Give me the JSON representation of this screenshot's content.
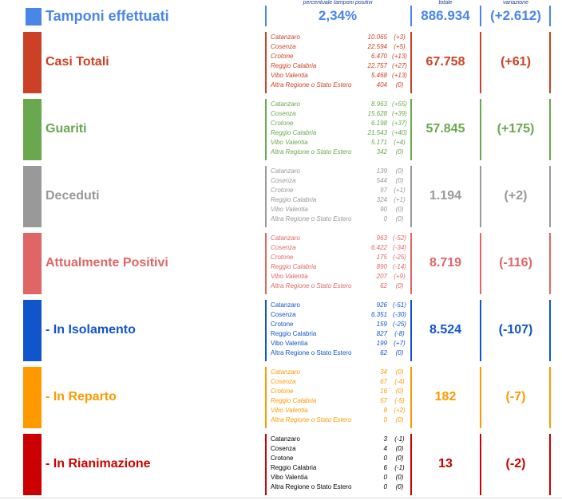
{
  "colors": {
    "tamponi": "#4a86e8",
    "casi": "#cc4125",
    "guariti": "#6aa84f",
    "deceduti": "#999999",
    "positivi": "#e06666",
    "isolamento": "#1155cc",
    "reparto": "#ff9900",
    "rianimazione": "#cc0000"
  },
  "header": {
    "title": "Tamponi effettuati",
    "pct_label": "percentuale tamponi positivi",
    "pct_value": "2,34%",
    "total_label": "totale",
    "total_value": "886.934",
    "var_label": "variazione",
    "var_value": "(+2.612)"
  },
  "sections": [
    {
      "title": "Casi Totali",
      "total": "67.758",
      "variation": "(+61)",
      "rows": [
        {
          "name": "Catanzaro",
          "value": "10.065",
          "delta": "(+3)"
        },
        {
          "name": "Cosenza",
          "value": "22.594",
          "delta": "(+5)"
        },
        {
          "name": "Crotone",
          "value": "6.470",
          "delta": "(+13)"
        },
        {
          "name": "Reggio Calabria",
          "value": "22.757",
          "delta": "(+27)"
        },
        {
          "name": "Vibo Valentia",
          "value": "5.468",
          "delta": "(+13)"
        },
        {
          "name": "Altra Regione o Stato Estero",
          "value": "404",
          "delta": "(0)"
        }
      ]
    },
    {
      "title": "Guariti",
      "total": "57.845",
      "variation": "(+175)",
      "rows": [
        {
          "name": "Catanzaro",
          "value": "8.963",
          "delta": "(+55)"
        },
        {
          "name": "Cosenza",
          "value": "15.628",
          "delta": "(+39)"
        },
        {
          "name": "Crotone",
          "value": "6.198",
          "delta": "(+37)"
        },
        {
          "name": "Reggio Calabria",
          "value": "21.543",
          "delta": "(+40)"
        },
        {
          "name": "Vibo Valentia",
          "value": "5.171",
          "delta": "(+4)"
        },
        {
          "name": "Altra Regione o Stato Estero",
          "value": "342",
          "delta": "(0)"
        }
      ]
    },
    {
      "title": "Deceduti",
      "total": "1.194",
      "variation": "(+2)",
      "rows": [
        {
          "name": "Catanzaro",
          "value": "139",
          "delta": "(0)"
        },
        {
          "name": "Cosenza",
          "value": "544",
          "delta": "(0)"
        },
        {
          "name": "Crotone",
          "value": "97",
          "delta": "(+1)"
        },
        {
          "name": "Reggio Calabria",
          "value": "324",
          "delta": "(+1)"
        },
        {
          "name": "Vibo Valentia",
          "value": "90",
          "delta": "(0)"
        },
        {
          "name": "Altra Regione o Stato Estero",
          "value": "0",
          "delta": "(0)"
        }
      ]
    },
    {
      "title": "Attualmente Positivi",
      "total": "8.719",
      "variation": "(-116)",
      "rows": [
        {
          "name": "Catanzaro",
          "value": "963",
          "delta": "(-52)"
        },
        {
          "name": "Cosenza",
          "value": "6.422",
          "delta": "(-34)"
        },
        {
          "name": "Crotone",
          "value": "175",
          "delta": "(-25)"
        },
        {
          "name": "Reggio Calabria",
          "value": "890",
          "delta": "(-14)"
        },
        {
          "name": "Vibo Valentia",
          "value": "207",
          "delta": "(+9)"
        },
        {
          "name": "Altra Regione o Stato Estero",
          "value": "62",
          "delta": "(0)"
        }
      ]
    },
    {
      "title": "- In Isolamento",
      "total": "8.524",
      "variation": "(-107)",
      "rows": [
        {
          "name": "Catanzaro",
          "value": "926",
          "delta": "(-51)"
        },
        {
          "name": "Cosenza",
          "value": "6.351",
          "delta": "(-30)"
        },
        {
          "name": "Crotone",
          "value": "159",
          "delta": "(-25)"
        },
        {
          "name": "Reggio Calabria",
          "value": "827",
          "delta": "(-8)"
        },
        {
          "name": "Vibo Valentia",
          "value": "199",
          "delta": "(+7)"
        },
        {
          "name": "Altra Regione o Stato Estero",
          "value": "62",
          "delta": "(0)"
        }
      ]
    },
    {
      "title": "- In Reparto",
      "total": "182",
      "variation": "(-7)",
      "rows": [
        {
          "name": "Catanzaro",
          "value": "34",
          "delta": "(0)"
        },
        {
          "name": "Cosenza",
          "value": "67",
          "delta": "(-4)"
        },
        {
          "name": "Crotone",
          "value": "16",
          "delta": "(0)"
        },
        {
          "name": "Reggio Calabria",
          "value": "57",
          "delta": "(-5)"
        },
        {
          "name": "Vibo Valentia",
          "value": "8",
          "delta": "(+2)"
        },
        {
          "name": "Altra Regione o Stato Estero",
          "value": "0",
          "delta": "(0)"
        }
      ]
    },
    {
      "title": "- In Rianimazione",
      "total": "13",
      "variation": "(-2)",
      "rows": [
        {
          "name": "Catanzaro",
          "value": "3",
          "delta": "(-1)"
        },
        {
          "name": "Cosenza",
          "value": "4",
          "delta": "(0)"
        },
        {
          "name": "Crotone",
          "value": "0",
          "delta": "(0)"
        },
        {
          "name": "Reggio Calabria",
          "value": "6",
          "delta": "(-1)"
        },
        {
          "name": "Vibo Valentia",
          "value": "0",
          "delta": "(0)"
        },
        {
          "name": "Altra Regione o Stato Estero",
          "value": "0",
          "delta": "(0)"
        }
      ]
    }
  ]
}
